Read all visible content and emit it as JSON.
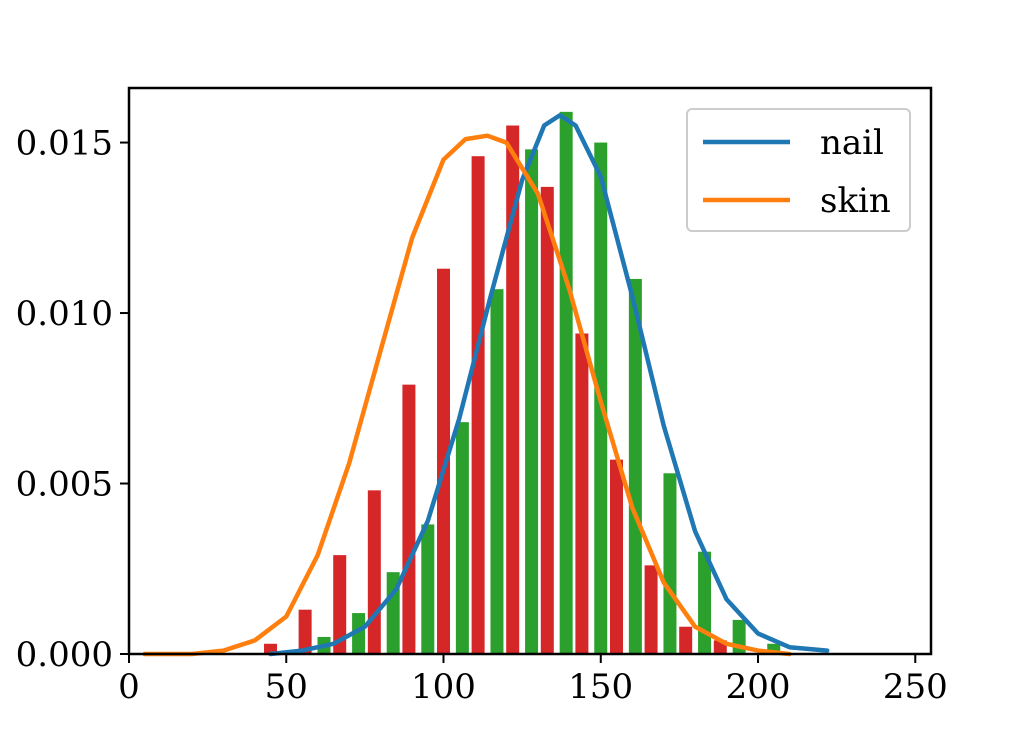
{
  "chart_data": {
    "type": "bar",
    "title": "",
    "xlabel": "",
    "ylabel": "",
    "xlim": [
      0,
      255
    ],
    "ylim": [
      0,
      0.0166
    ],
    "xticks": [
      0,
      50,
      100,
      150,
      200,
      250
    ],
    "xtick_labels": [
      "0",
      "50",
      "100",
      "150",
      "200",
      "250"
    ],
    "yticks": [
      0,
      0.005,
      0.01,
      0.015
    ],
    "ytick_labels": [
      "0.000",
      "0.005",
      "0.010",
      "0.015"
    ],
    "grid": false,
    "legend_position": "top-right",
    "histograms": [
      {
        "color": "#d62728",
        "bars": [
          {
            "x": 45,
            "y": 0.0003
          },
          {
            "x": 56,
            "y": 0.0013
          },
          {
            "x": 67,
            "y": 0.0029
          },
          {
            "x": 78,
            "y": 0.0048
          },
          {
            "x": 89,
            "y": 0.0079
          },
          {
            "x": 100,
            "y": 0.0113
          },
          {
            "x": 111,
            "y": 0.0146
          },
          {
            "x": 122,
            "y": 0.0155
          },
          {
            "x": 133,
            "y": 0.0137
          },
          {
            "x": 144,
            "y": 0.0094
          },
          {
            "x": 155,
            "y": 0.0057
          },
          {
            "x": 166,
            "y": 0.0026
          },
          {
            "x": 177,
            "y": 0.0008
          },
          {
            "x": 188,
            "y": 0.0004
          }
        ]
      },
      {
        "color": "#2ca02c",
        "bars": [
          {
            "x": 62,
            "y": 0.0005
          },
          {
            "x": 73,
            "y": 0.0012
          },
          {
            "x": 84,
            "y": 0.0024
          },
          {
            "x": 95,
            "y": 0.0038
          },
          {
            "x": 106,
            "y": 0.0068
          },
          {
            "x": 117,
            "y": 0.0107
          },
          {
            "x": 128,
            "y": 0.0148
          },
          {
            "x": 139,
            "y": 0.0159
          },
          {
            "x": 150,
            "y": 0.015
          },
          {
            "x": 161,
            "y": 0.011
          },
          {
            "x": 172,
            "y": 0.0053
          },
          {
            "x": 183,
            "y": 0.003
          },
          {
            "x": 194,
            "y": 0.001
          },
          {
            "x": 205,
            "y": 0.0003
          }
        ]
      }
    ],
    "series": [
      {
        "name": "nail",
        "color": "#1f77b4",
        "points": [
          [
            45,
            0.0
          ],
          [
            55,
            0.0001
          ],
          [
            65,
            0.0003
          ],
          [
            75,
            0.0008
          ],
          [
            85,
            0.0019
          ],
          [
            95,
            0.0039
          ],
          [
            105,
            0.0069
          ],
          [
            115,
            0.0105
          ],
          [
            125,
            0.0139
          ],
          [
            132,
            0.0155
          ],
          [
            137,
            0.0158
          ],
          [
            142,
            0.0155
          ],
          [
            150,
            0.014
          ],
          [
            160,
            0.0105
          ],
          [
            170,
            0.0067
          ],
          [
            180,
            0.0036
          ],
          [
            190,
            0.0016
          ],
          [
            200,
            0.0006
          ],
          [
            210,
            0.0002
          ],
          [
            222,
            0.0001
          ]
        ]
      },
      {
        "name": "skin",
        "color": "#ff7f0e",
        "points": [
          [
            5,
            0.0
          ],
          [
            20,
            0.0
          ],
          [
            30,
            0.0001
          ],
          [
            40,
            0.0004
          ],
          [
            50,
            0.0011
          ],
          [
            60,
            0.0029
          ],
          [
            70,
            0.0056
          ],
          [
            80,
            0.0089
          ],
          [
            90,
            0.0122
          ],
          [
            100,
            0.0145
          ],
          [
            107,
            0.0151
          ],
          [
            114,
            0.0152
          ],
          [
            120,
            0.015
          ],
          [
            130,
            0.0135
          ],
          [
            140,
            0.0107
          ],
          [
            150,
            0.0074
          ],
          [
            160,
            0.0043
          ],
          [
            170,
            0.0021
          ],
          [
            180,
            0.0008
          ],
          [
            190,
            0.0003
          ],
          [
            200,
            0.0001
          ],
          [
            210,
            0.0
          ]
        ]
      }
    ]
  }
}
